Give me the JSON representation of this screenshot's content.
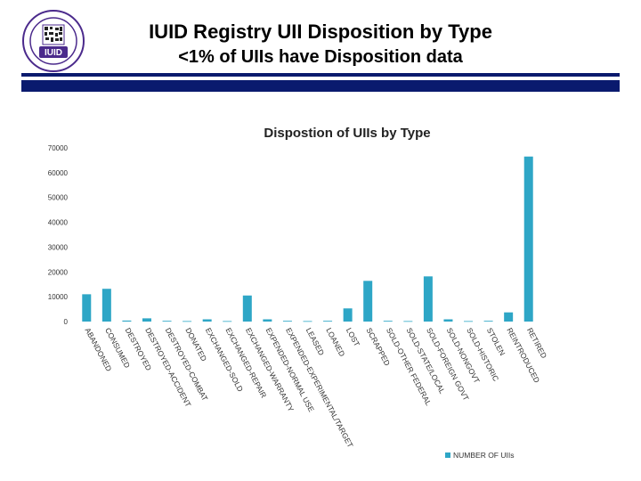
{
  "header": {
    "title": "IUID Registry UII Disposition by Type",
    "subtitle": "<1% of UIIs have Disposition data",
    "logo_text": "IUID",
    "logo_ring_text": "ITEM UNIQUE IDENTIFICATION"
  },
  "colors": {
    "header_bar": "#0a1a6e",
    "bar": "#2ea6c6",
    "logo_purple": "#4b2a8c"
  },
  "chart_data": {
    "type": "bar",
    "title": "Dispostion of UIIs by Type",
    "categories": [
      "ABANDONED",
      "CONSUMED",
      "DESTROYED",
      "DESTROYED-ACCIDENT",
      "DESTROYED-COMBAT",
      "DONATED",
      "EXCHANGED-SOLD",
      "EXCHANGED-REPAIR",
      "EXCHANGED-WARRANTY",
      "EXPENDED-NORMAL USE",
      "EXPENDED-EXPERIMENTAL/TARGET",
      "LEASED",
      "LOANED",
      "LOST",
      "SCRAPPED",
      "SOLD-OTHER FEDERAL",
      "SOLD-STATE/LOCAL",
      "SOLD-FOREIGN GOVT",
      "SOLD-NONGOVT",
      "SOLD-HISTORIC",
      "STOLEN",
      "REINTRODUCED",
      "RETIRED"
    ],
    "series": [
      {
        "name": "NUMBER OF UIIs",
        "values": [
          11000,
          13200,
          400,
          1300,
          300,
          200,
          900,
          200,
          10500,
          900,
          300,
          200,
          300,
          5300,
          16400,
          300,
          200,
          18200,
          900,
          200,
          300,
          3700,
          66500
        ]
      }
    ],
    "y_ticks": [
      "0",
      "10000",
      "20000",
      "30000",
      "40000",
      "50000",
      "60000",
      "70000"
    ],
    "ylim": [
      0,
      70000
    ],
    "xlabel": "",
    "ylabel": "",
    "legend_position": "bottom-right",
    "grid": false
  }
}
